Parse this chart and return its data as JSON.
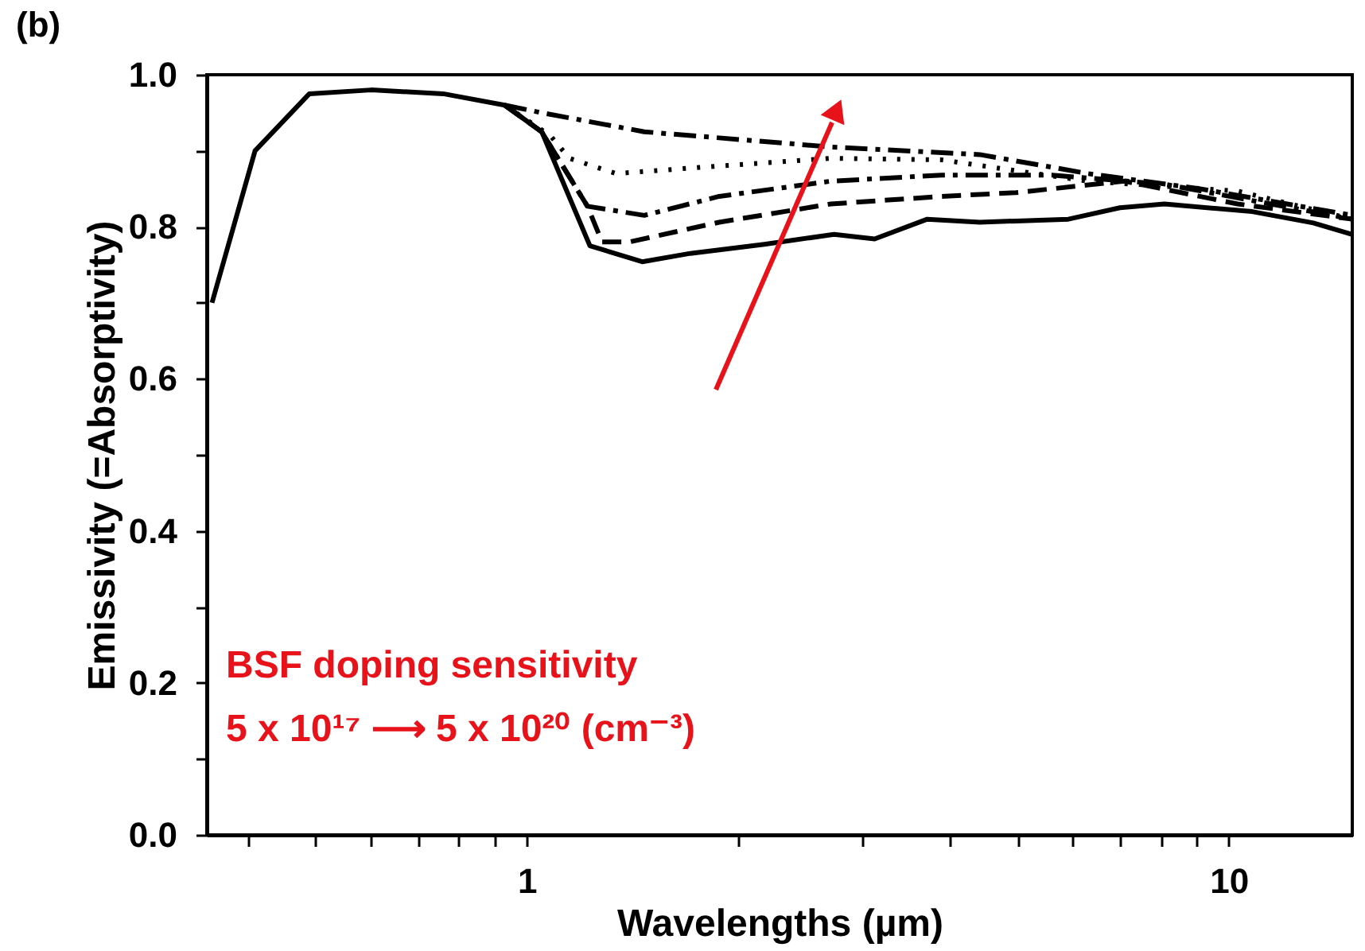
{
  "chart_data": {
    "type": "line",
    "title": "(b)",
    "xlabel": "Wavelengths (µm)",
    "ylabel": "Emissivity (=Absorptivity)",
    "log": "x",
    "grid": false,
    "marker": "none",
    "xlim": [
      0.35,
      15
    ],
    "ylim": [
      0,
      1
    ],
    "xticks": [
      {
        "value": 0.4,
        "label": null
      },
      {
        "value": 0.5,
        "label": null
      },
      {
        "value": 0.6,
        "label": null
      },
      {
        "value": 0.7,
        "label": null
      },
      {
        "value": 0.8,
        "label": null
      },
      {
        "value": 0.9,
        "label": null
      },
      1,
      {
        "value": 2,
        "label": null
      },
      {
        "value": 3,
        "label": null
      },
      {
        "value": 4,
        "label": null
      },
      {
        "value": 5,
        "label": null
      },
      {
        "value": 6,
        "label": null
      },
      {
        "value": 7,
        "label": null
      },
      {
        "value": 8,
        "label": null
      },
      {
        "value": 9,
        "label": null
      },
      10
    ],
    "yticks": [
      {
        "value": 0,
        "label": "0.0"
      },
      {
        "value": 0.1,
        "label": null
      },
      {
        "value": 0.2,
        "label": "0.2"
      },
      {
        "value": 0.3,
        "label": null
      },
      {
        "value": 0.4,
        "label": "0.4"
      },
      {
        "value": 0.5,
        "label": null
      },
      {
        "value": 0.6,
        "label": "0.6"
      },
      {
        "value": 0.7,
        "label": null
      },
      {
        "value": 0.8,
        "label": "0.8"
      },
      {
        "value": 0.9,
        "label": null
      },
      {
        "value": 1,
        "label": "1.0"
      }
    ],
    "series": [
      {
        "color": "#000000",
        "line_style": "solid",
        "x": [
          0.356,
          0.41,
          0.49,
          0.6,
          0.76,
          0.93,
          1.05,
          1.23,
          1.46,
          1.71,
          2.18,
          2.74,
          3.13,
          3.72,
          4.42,
          5.91,
          7.0,
          8.1,
          10.8,
          13.2,
          15
        ],
        "values": [
          0.7,
          0.9,
          0.975,
          0.98,
          0.975,
          0.96,
          0.925,
          0.775,
          0.754,
          0.765,
          0.777,
          0.79,
          0.784,
          0.81,
          0.806,
          0.81,
          0.825,
          0.83,
          0.82,
          0.805,
          0.79
        ]
      },
      {
        "color": "#000000",
        "line_style": "dashed",
        "x": [
          0.93,
          1.05,
          1.22,
          1.28,
          1.4,
          1.88,
          2.71,
          3.9,
          4.98,
          7.1,
          10.3,
          15
        ],
        "values": [
          0.96,
          0.925,
          0.827,
          0.78,
          0.78,
          0.806,
          0.83,
          0.84,
          0.845,
          0.86,
          0.83,
          0.81
        ]
      },
      {
        "color": "#000000",
        "line_style": "dashdot",
        "x": [
          0.93,
          1.05,
          1.22,
          1.47,
          1.88,
          2.71,
          3.9,
          5.6,
          8.1,
          15
        ],
        "values": [
          0.96,
          0.925,
          0.827,
          0.815,
          0.84,
          0.86,
          0.868,
          0.868,
          0.856,
          0.81
        ]
      },
      {
        "color": "#000000",
        "line_style": "dotted",
        "x": [
          0.93,
          1.08,
          1.15,
          1.34,
          1.88,
          2.71,
          3.9,
          6.3,
          10.3,
          15
        ],
        "values": [
          0.96,
          0.92,
          0.89,
          0.87,
          0.88,
          0.89,
          0.888,
          0.86,
          0.847,
          0.81
        ]
      },
      {
        "color": "#000000",
        "line_style": "dashdot",
        "x": [
          0.93,
          1.05,
          1.47,
          2.71,
          4.42,
          6.3,
          9.1,
          15
        ],
        "values": [
          0.96,
          0.95,
          0.925,
          0.905,
          0.895,
          0.87,
          0.85,
          0.815
        ]
      }
    ],
    "annotations": [
      "BSF doping sensitivity",
      "5 x 10¹⁷ ⟶ 5 x 10²⁰ (cm⁻³)"
    ]
  }
}
